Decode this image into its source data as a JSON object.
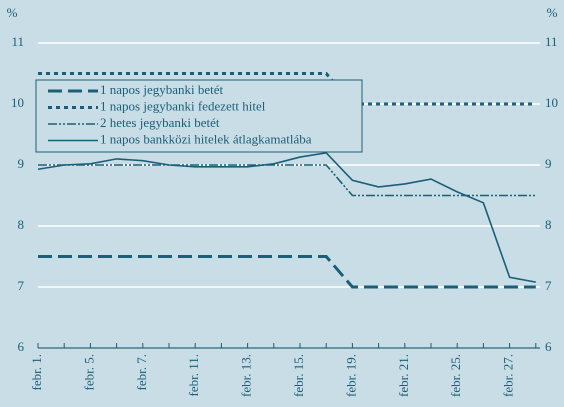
{
  "chart_data": {
    "type": "line",
    "y_unit": "%",
    "categories": [
      "febr. 1.",
      null,
      "febr. 5.",
      null,
      "febr. 7.",
      null,
      "febr. 11.",
      null,
      "febr. 13.",
      null,
      "febr. 15.",
      null,
      "febr. 19.",
      null,
      "febr. 21.",
      null,
      "febr. 25.",
      null,
      "febr. 27.",
      null
    ],
    "series": [
      {
        "name": "1 napos jegybanki betét",
        "color": "#1b5e78",
        "dash": "14,6",
        "width": 3,
        "values": [
          7.5,
          7.5,
          7.5,
          7.5,
          7.5,
          7.5,
          7.5,
          7.5,
          7.5,
          7.5,
          7.5,
          7.5,
          7,
          7,
          7,
          7,
          7,
          7,
          7,
          7
        ]
      },
      {
        "name": "1 napos jegybanki fedezett hitel",
        "color": "#1b5e78",
        "dash": "4,4",
        "width": 3,
        "values": [
          10.5,
          10.5,
          10.5,
          10.5,
          10.5,
          10.5,
          10.5,
          10.5,
          10.5,
          10.5,
          10.5,
          10.5,
          10,
          10,
          10,
          10,
          10,
          10,
          10,
          10
        ]
      },
      {
        "name": "2 hetes jegybanki betét",
        "color": "#1b5e78",
        "dash": "9,2,2,2,2,2",
        "width": 1.6,
        "values": [
          9,
          9,
          9,
          9,
          9,
          9,
          9,
          9,
          9,
          9,
          9,
          9,
          8.5,
          8.5,
          8.5,
          8.5,
          8.5,
          8.5,
          8.5,
          8.5
        ]
      },
      {
        "name": "1 napos bankközi hitelek átlagkamatlába",
        "color": "#1b5e78",
        "dash": "none",
        "width": 1.6,
        "values": [
          8.93,
          9.0,
          9.02,
          9.1,
          9.07,
          9.0,
          8.97,
          8.97,
          8.97,
          9.02,
          9.13,
          9.2,
          8.75,
          8.64,
          8.69,
          8.77,
          8.56,
          8.38,
          7.16,
          7.08
        ]
      }
    ],
    "ylim": [
      6,
      11
    ],
    "yticks": [
      6,
      7,
      8,
      9,
      10,
      11
    ],
    "grid": true,
    "legend": "upper left"
  }
}
